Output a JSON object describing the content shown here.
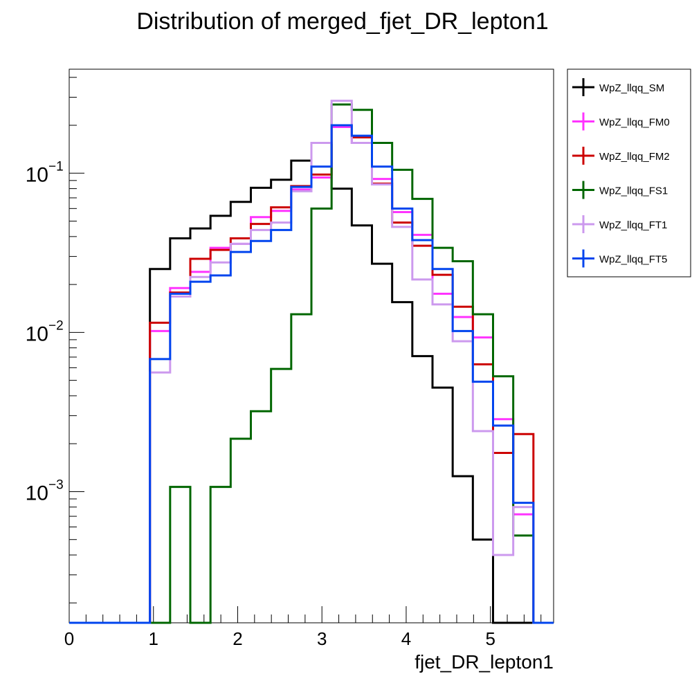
{
  "chart_data": {
    "type": "histogram",
    "title": "Distribution of merged_fjet_DR_lepton1",
    "xlabel": "fjet_DR_lepton1",
    "ylabel": "",
    "y_scale": "log",
    "xlim": [
      0,
      5.75
    ],
    "ylim": [
      0.00015,
      0.45
    ],
    "bin_edges": [
      0,
      0.2395833,
      0.4791667,
      0.71875,
      0.9583333,
      1.1979167,
      1.4375,
      1.6770833,
      1.9166667,
      2.15625,
      2.3958333,
      2.6354167,
      2.875,
      3.1145833,
      3.3541667,
      3.59375,
      3.8333333,
      4.0729167,
      4.3125,
      4.5520833,
      4.7916667,
      5.03125,
      5.2708333,
      5.5104167,
      5.75
    ],
    "x_ticks": [
      0,
      1,
      2,
      3,
      4,
      5
    ],
    "y_ticks": [
      {
        "value": 0.1,
        "label": "10",
        "exp": "−1"
      },
      {
        "value": 0.01,
        "label": "10",
        "exp": "−2"
      },
      {
        "value": 0.001,
        "label": "10",
        "exp": "−3"
      }
    ],
    "legend_position": "top-right outside",
    "series": [
      {
        "name": "WpZ_llqq_SM",
        "color": "#000000",
        "values": [
          0,
          0,
          0,
          0,
          0.025,
          0.039,
          0.045,
          0.054,
          0.066,
          0.081,
          0.091,
          0.12,
          0.155,
          0.08,
          0.047,
          0.027,
          0.0155,
          0.0071,
          0.0045,
          0.00125,
          0.0005,
          0,
          0,
          0
        ]
      },
      {
        "name": "WpZ_llqq_FM0",
        "color": "#ff33ff",
        "values": [
          0,
          0,
          0,
          0,
          0.0102,
          0.019,
          0.024,
          0.034,
          0.036,
          0.053,
          0.058,
          0.079,
          0.094,
          0.195,
          0.155,
          0.092,
          0.057,
          0.041,
          0.0175,
          0.0125,
          0.0093,
          0.00285,
          0.00072,
          0
        ]
      },
      {
        "name": "WpZ_llqq_FM2",
        "color": "#cc0000",
        "values": [
          0,
          0,
          0,
          0,
          0.0115,
          0.0178,
          0.029,
          0.033,
          0.039,
          0.048,
          0.061,
          0.083,
          0.098,
          0.2,
          0.168,
          0.086,
          0.049,
          0.035,
          0.023,
          0.0145,
          0.0063,
          0.00175,
          0.0023,
          0
        ]
      },
      {
        "name": "WpZ_llqq_FS1",
        "color": "#006600",
        "values": [
          0,
          0,
          0,
          0,
          0,
          0.00107,
          0,
          0.00107,
          0.00215,
          0.0032,
          0.0059,
          0.013,
          0.06,
          0.27,
          0.25,
          0.155,
          0.105,
          0.069,
          0.034,
          0.028,
          0.013,
          0.0053,
          0.00053,
          0
        ]
      },
      {
        "name": "WpZ_llqq_FT1",
        "color": "#cc99ee",
        "values": [
          0,
          0,
          0,
          0,
          0.0056,
          0.0168,
          0.0223,
          0.0275,
          0.036,
          0.044,
          0.049,
          0.077,
          0.155,
          0.285,
          0.155,
          0.085,
          0.046,
          0.0215,
          0.015,
          0.0088,
          0.0024,
          0.0004,
          0.0008,
          0
        ]
      },
      {
        "name": "WpZ_llqq_FT5",
        "color": "#0044ee",
        "values": [
          0,
          0,
          0,
          0,
          0.0068,
          0.0175,
          0.0208,
          0.0228,
          0.032,
          0.0375,
          0.044,
          0.082,
          0.11,
          0.2,
          0.172,
          0.11,
          0.06,
          0.038,
          0.025,
          0.0102,
          0.0049,
          0.0026,
          0.00085,
          0
        ]
      }
    ]
  }
}
